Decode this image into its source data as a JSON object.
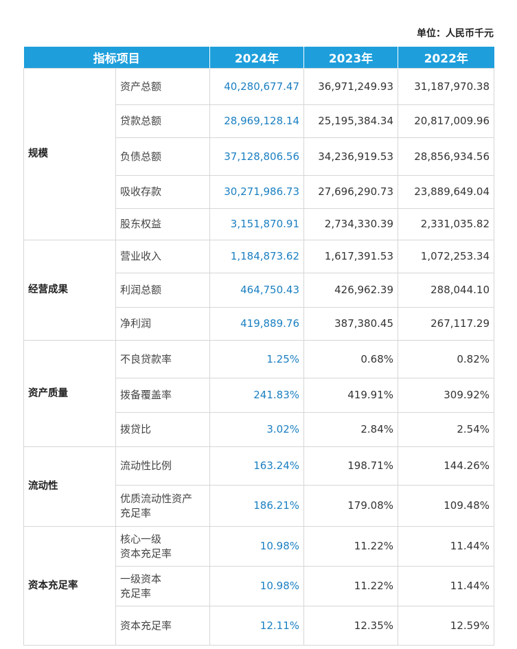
{
  "unit_label": "单位：人民币千元",
  "header": {
    "col0": "指标项目",
    "col1": "2024年",
    "col2": "2023年",
    "col3": "2022年"
  },
  "groups": [
    {
      "category": "规模",
      "rows": [
        {
          "name": "资产总额",
          "v2024": "40,280,677.47",
          "v2023": "36,971,249.93",
          "v2022": "31,187,970.38"
        },
        {
          "name": "贷款总额",
          "v2024": "28,969,128.14",
          "v2023": "25,195,384.34",
          "v2022": "20,817,009.96"
        },
        {
          "name": "负债总额",
          "v2024": "37,128,806.56",
          "v2023": "34,236,919.53",
          "v2022": "28,856,934.56"
        },
        {
          "name": "吸收存款",
          "v2024": "30,271,986.73",
          "v2023": "27,696,290.73",
          "v2022": "23,889,649.04"
        },
        {
          "name": "股东权益",
          "v2024": "3,151,870.91",
          "v2023": "2,734,330.39",
          "v2022": "2,331,035.82"
        }
      ]
    },
    {
      "category": "经营成果",
      "rows": [
        {
          "name": "营业收入",
          "v2024": "1,184,873.62",
          "v2023": "1,617,391.53",
          "v2022": "1,072,253.34"
        },
        {
          "name": "利润总额",
          "v2024": "464,750.43",
          "v2023": "426,962.39",
          "v2022": "288,044.10"
        },
        {
          "name": "净利润",
          "v2024": "419,889.76",
          "v2023": "387,380.45",
          "v2022": "267,117.29"
        }
      ]
    },
    {
      "category": "资产质量",
      "rows": [
        {
          "name": "不良贷款率",
          "v2024": "1.25%",
          "v2023": "0.68%",
          "v2022": "0.82%"
        },
        {
          "name": "拨备覆盖率",
          "v2024": "241.83%",
          "v2023": "419.91%",
          "v2022": "309.92%"
        },
        {
          "name": "拨贷比",
          "v2024": "3.02%",
          "v2023": "2.84%",
          "v2022": "2.54%"
        }
      ]
    },
    {
      "category": "流动性",
      "rows": [
        {
          "name": "流动性比例",
          "v2024": "163.24%",
          "v2023": "198.71%",
          "v2022": "144.26%"
        },
        {
          "name": "优质流动性资产",
          "name2": "充足率",
          "v2024": "186.21%",
          "v2023": "179.08%",
          "v2022": "109.48%"
        }
      ]
    },
    {
      "category": "资本充足率",
      "rows": [
        {
          "name": "核心一级",
          "name2": "资本充足率",
          "v2024": "10.98%",
          "v2023": "11.22%",
          "v2022": "11.44%"
        },
        {
          "name": "一级资本",
          "name2": "充足率",
          "v2024": "10.98%",
          "v2023": "11.22%",
          "v2022": "11.44%"
        },
        {
          "name": "资本充足率",
          "v2024": "12.11%",
          "v2023": "12.35%",
          "v2022": "12.59%"
        }
      ]
    }
  ]
}
